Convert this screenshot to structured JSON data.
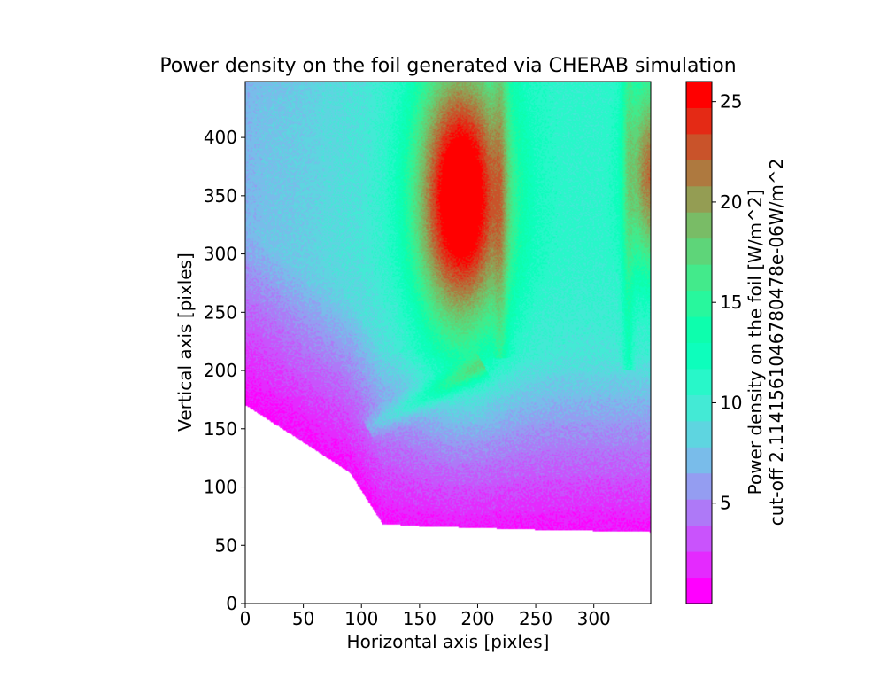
{
  "chart_data": {
    "type": "heatmap",
    "title": "Power density on the foil generated via CHERAB simulation",
    "xlabel": "Horizontal axis [pixles]",
    "ylabel": "Vertical axis [pixles]",
    "xlim": [
      0,
      349
    ],
    "ylim": [
      0,
      448
    ],
    "x_ticks": [
      0,
      50,
      100,
      150,
      200,
      250,
      300
    ],
    "y_ticks": [
      0,
      50,
      100,
      150,
      200,
      250,
      300,
      350,
      400
    ],
    "colormap": "rainbow",
    "colorbar": {
      "label_line1": "Power density on the foil [W/m^2]",
      "label_line2": "cut-off 2.1141561046780478e-06W/m^2",
      "min": 0.0,
      "max": 26.0,
      "levels": 20,
      "ticks": [
        5,
        10,
        15,
        20,
        25
      ]
    },
    "field_features": {
      "lower_boundary": [
        [
          0,
          170
        ],
        [
          50,
          138
        ],
        [
          90,
          112
        ],
        [
          118,
          68
        ],
        [
          150,
          66
        ],
        [
          250,
          63
        ],
        [
          349,
          61
        ]
      ],
      "hotspot_main": {
        "x": 185,
        "y": 350,
        "peak": 24
      },
      "hotspot_right": {
        "x": 349,
        "y": 370,
        "peak": 21
      },
      "ridge_main_x": 220,
      "ridge_right_x": 330,
      "diagonal_streak": {
        "from": [
          105,
          150
        ],
        "to": [
          205,
          205
        ],
        "value": 14
      },
      "background_range": [
        1,
        11
      ]
    }
  }
}
